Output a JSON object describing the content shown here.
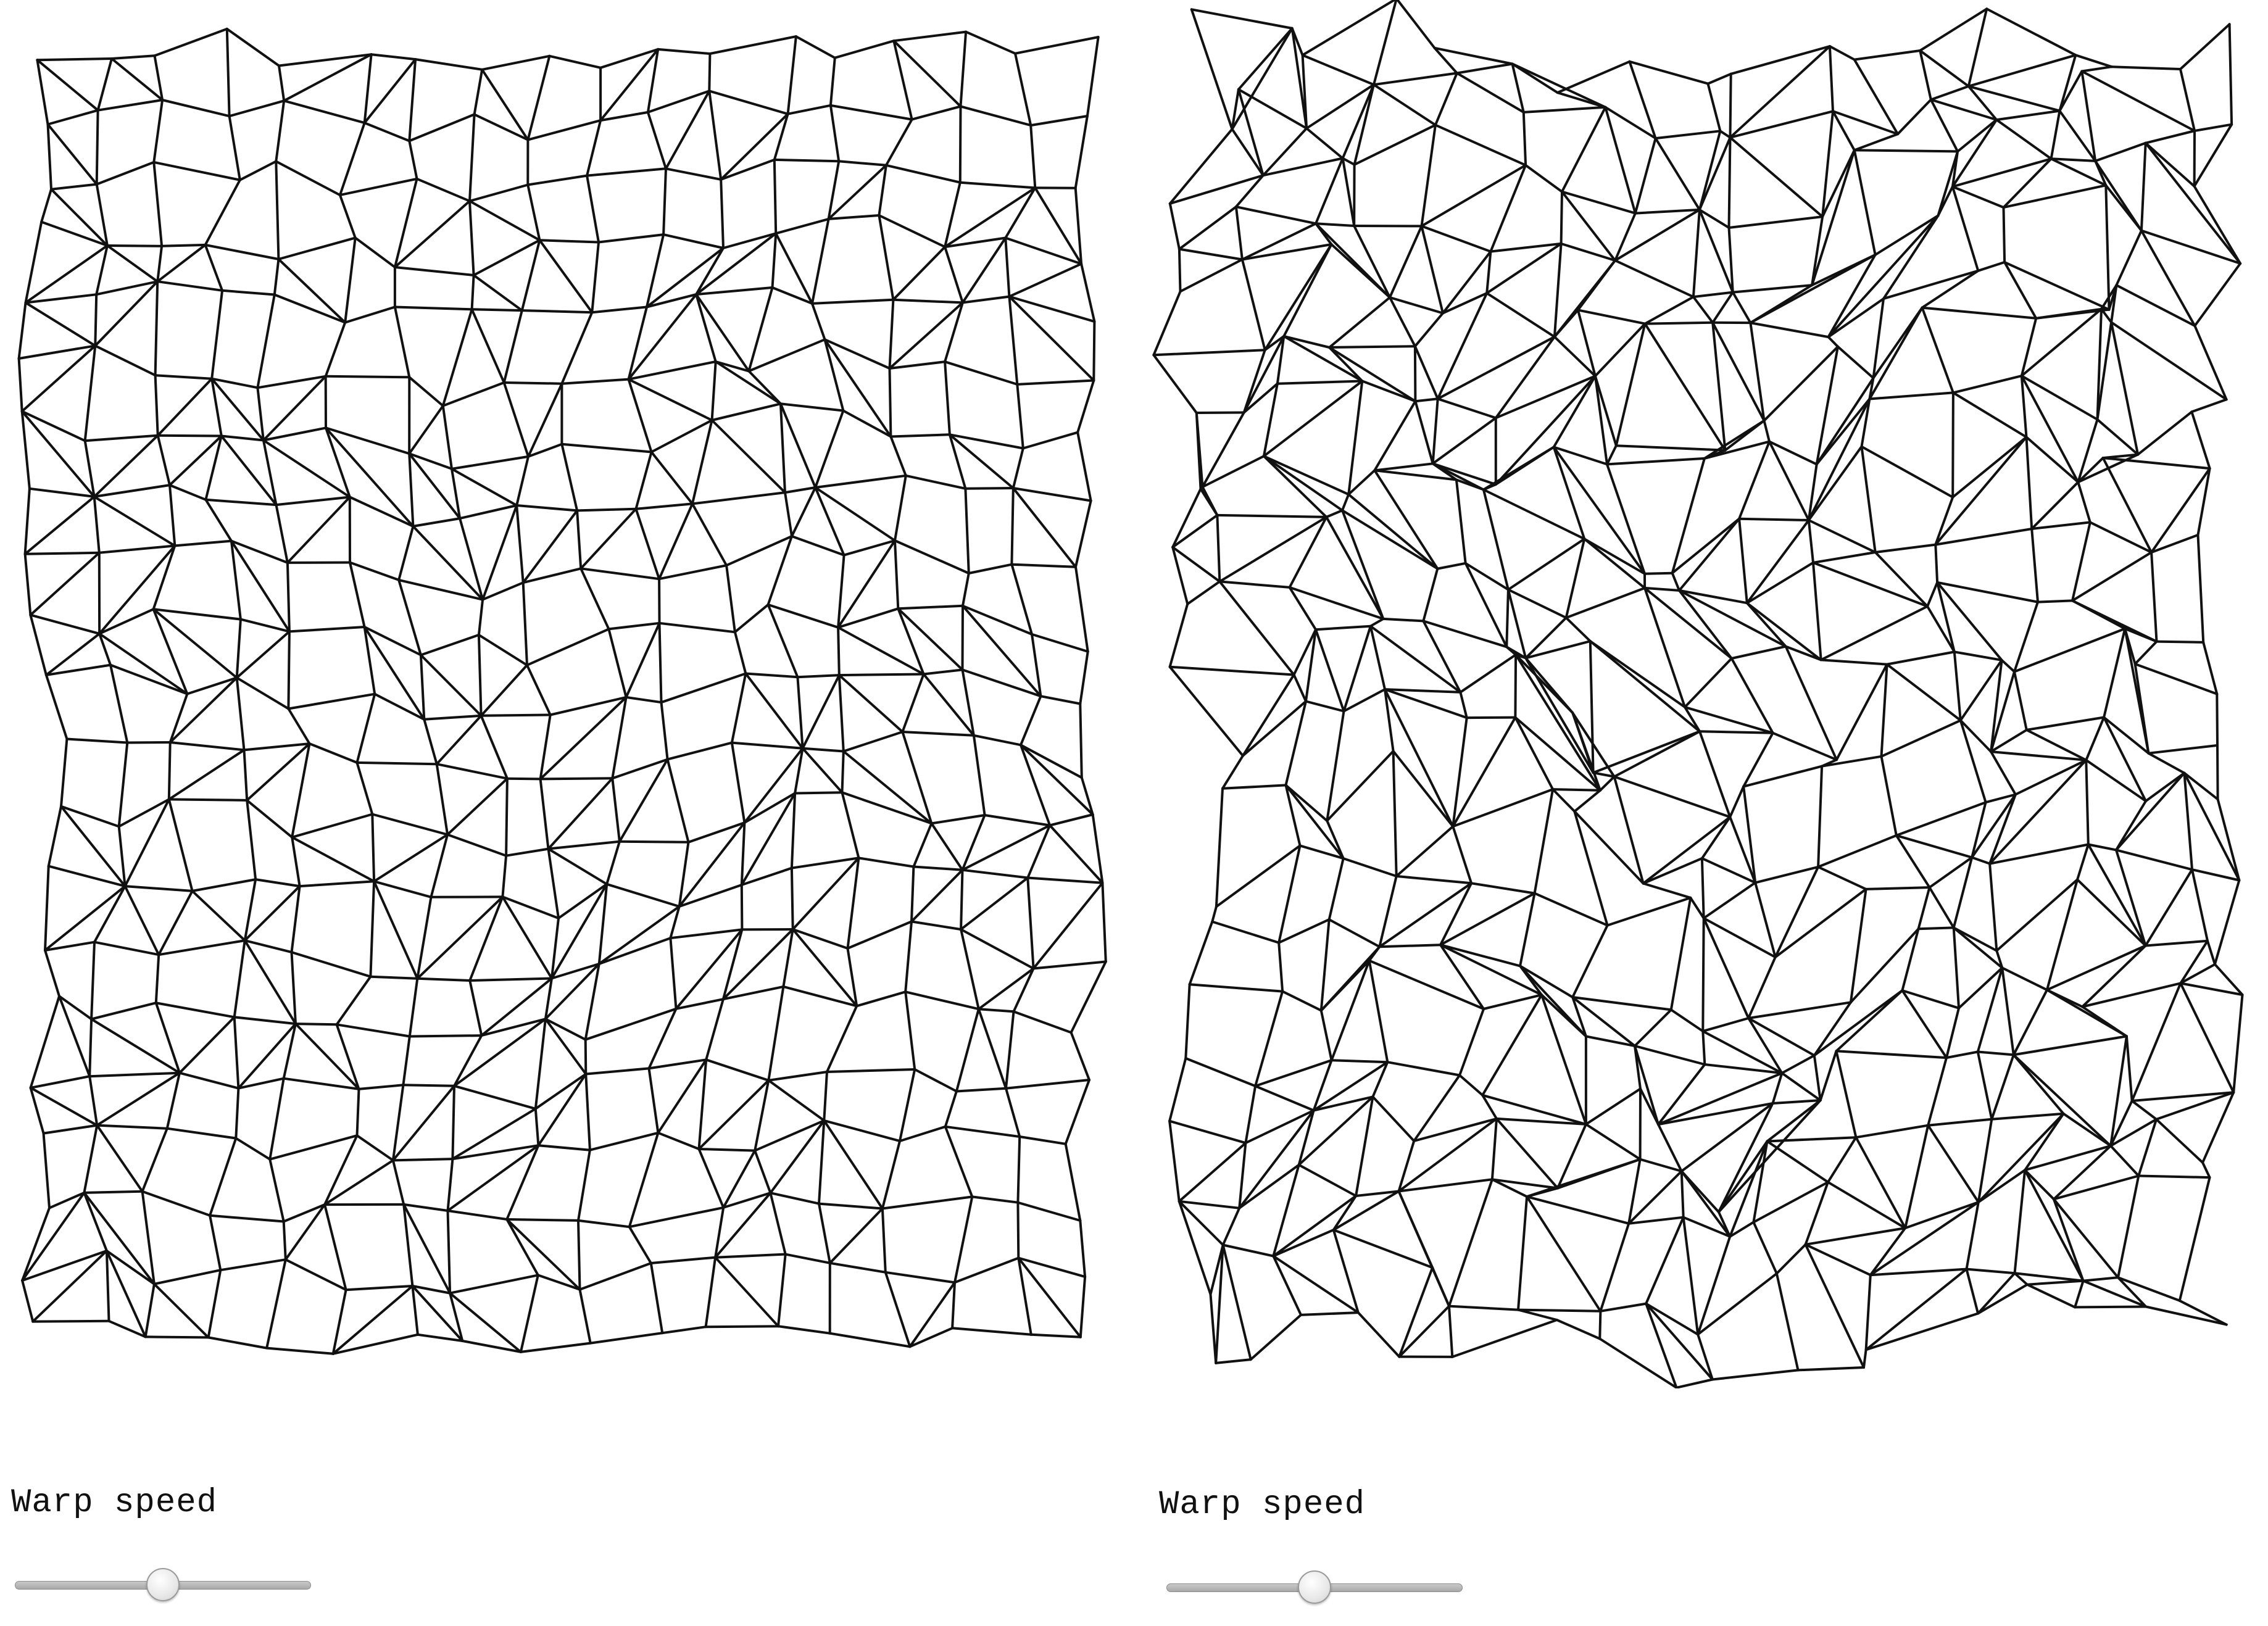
{
  "panels": [
    {
      "label": "Warp speed",
      "warp_speed": 0.5,
      "line_color": "#111111"
    },
    {
      "label": "Warp speed",
      "warp_speed": 0.5,
      "line_color": "#111111"
    }
  ]
}
